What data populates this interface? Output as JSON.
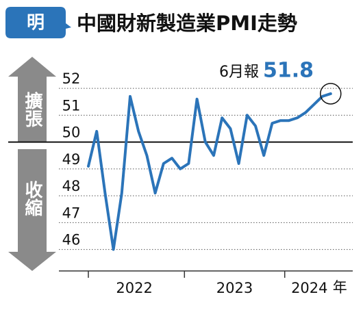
{
  "chart_data": {
    "type": "line",
    "logo": "明",
    "title": "中國財新製造業PMI走勢",
    "expansion_label": "擴張",
    "contraction_label": "收縮",
    "annotation": "6月報",
    "categories": [
      null,
      null,
      null,
      null,
      null,
      null,
      null,
      null,
      null,
      null,
      null,
      null,
      null,
      null,
      null,
      null,
      null,
      null,
      null,
      null,
      null,
      null,
      null,
      null,
      null,
      null,
      null,
      null,
      null,
      null
    ],
    "values": [
      49.1,
      50.4,
      48.1,
      46.0,
      48.1,
      51.7,
      50.4,
      49.5,
      48.1,
      49.2,
      49.4,
      49.0,
      49.2,
      51.6,
      50.0,
      49.5,
      50.9,
      50.5,
      49.2,
      51.0,
      50.6,
      49.5,
      50.7,
      50.8,
      50.8,
      50.9,
      51.1,
      51.4,
      51.7,
      51.8
    ],
    "year_labels": [
      "2022",
      "2023",
      "2024"
    ],
    "year_unit": "年",
    "color": "#2b74b9",
    "ylim": [
      45.2,
      53.2
    ],
    "yticks": [
      46,
      47,
      48,
      49,
      50,
      51,
      52
    ],
    "baseline": 50,
    "grid": true
  }
}
